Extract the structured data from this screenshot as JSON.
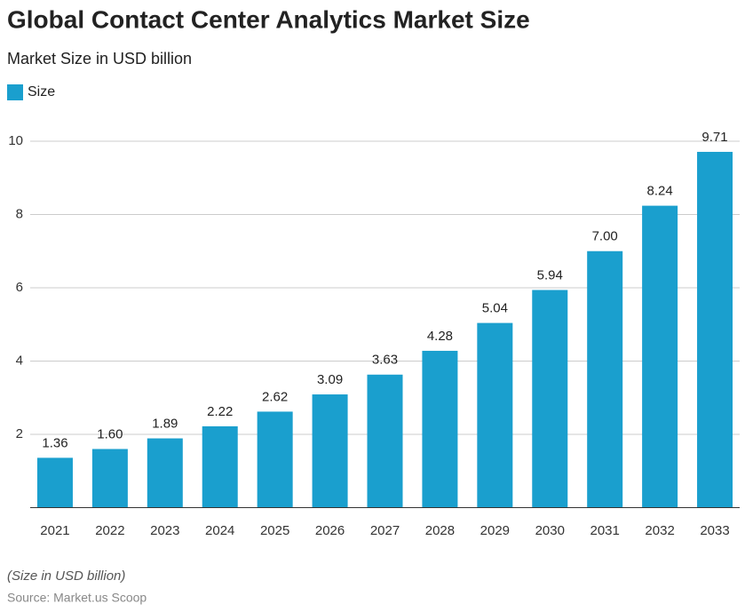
{
  "chart_data": {
    "type": "bar",
    "title": "Global Contact Center Analytics Market Size",
    "subtitle": "Market Size in USD billion",
    "categories": [
      "2021",
      "2022",
      "2023",
      "2024",
      "2025",
      "2026",
      "2027",
      "2028",
      "2029",
      "2030",
      "2031",
      "2032",
      "2033"
    ],
    "series": [
      {
        "name": "Size",
        "color": "#1a9fce",
        "values": [
          1.36,
          1.6,
          1.89,
          2.22,
          2.62,
          3.09,
          3.63,
          4.28,
          5.04,
          5.94,
          7.0,
          8.24,
          9.71
        ],
        "value_labels": [
          "1.36",
          "1.60",
          "1.89",
          "2.22",
          "2.62",
          "3.09",
          "3.63",
          "4.28",
          "5.04",
          "5.94",
          "7.00",
          "8.24",
          "9.71"
        ]
      }
    ],
    "ylim": [
      0,
      10
    ],
    "yticks": [
      2,
      4,
      6,
      8,
      10
    ],
    "grid": true,
    "note": "(Size in USD billion)",
    "source": "Source: Market.us Scoop"
  }
}
